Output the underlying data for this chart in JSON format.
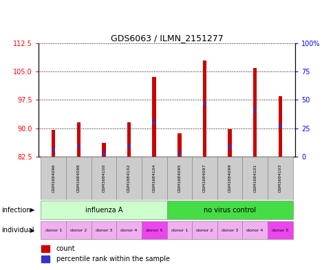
{
  "title": "GDS6063 / ILMN_2151277",
  "samples": [
    "GSM1684096",
    "GSM1684098",
    "GSM1684100",
    "GSM1684102",
    "GSM1684104",
    "GSM1684095",
    "GSM1684097",
    "GSM1684099",
    "GSM1684101",
    "GSM1684103"
  ],
  "count_values": [
    89.5,
    91.5,
    86.2,
    91.5,
    103.5,
    88.7,
    108.0,
    89.8,
    106.0,
    98.5
  ],
  "percentile_values": [
    84.3,
    85.5,
    83.3,
    85.4,
    91.5,
    83.3,
    96.5,
    85.0,
    94.5,
    90.5
  ],
  "ylim_left": [
    82.5,
    112.5
  ],
  "ylim_right": [
    0,
    100
  ],
  "yticks_left": [
    82.5,
    90.0,
    97.5,
    105.0,
    112.5
  ],
  "yticks_right": [
    0,
    25,
    50,
    75,
    100
  ],
  "bar_color": "#cc0000",
  "blue_color": "#3333cc",
  "infection_groups": [
    {
      "label": "influenza A",
      "start": 0,
      "end": 5,
      "color": "#ccffcc"
    },
    {
      "label": "no virus control",
      "start": 5,
      "end": 10,
      "color": "#44dd44"
    }
  ],
  "individual_colors": [
    "#f0b0f0",
    "#f0b0f0",
    "#f0b0f0",
    "#f0b0f0",
    "#ee44ee",
    "#f0b0f0",
    "#f0b0f0",
    "#f0b0f0",
    "#f0b0f0",
    "#ee44ee"
  ],
  "individual_labels": [
    "donor 1",
    "donor 2",
    "donor 3",
    "donor 4",
    "donor 5",
    "donor 1",
    "donor 2",
    "donor 3",
    "donor 4",
    "donor 5"
  ],
  "sample_bg_color": "#cccccc",
  "baseline": 82.5,
  "bar_width": 0.15
}
